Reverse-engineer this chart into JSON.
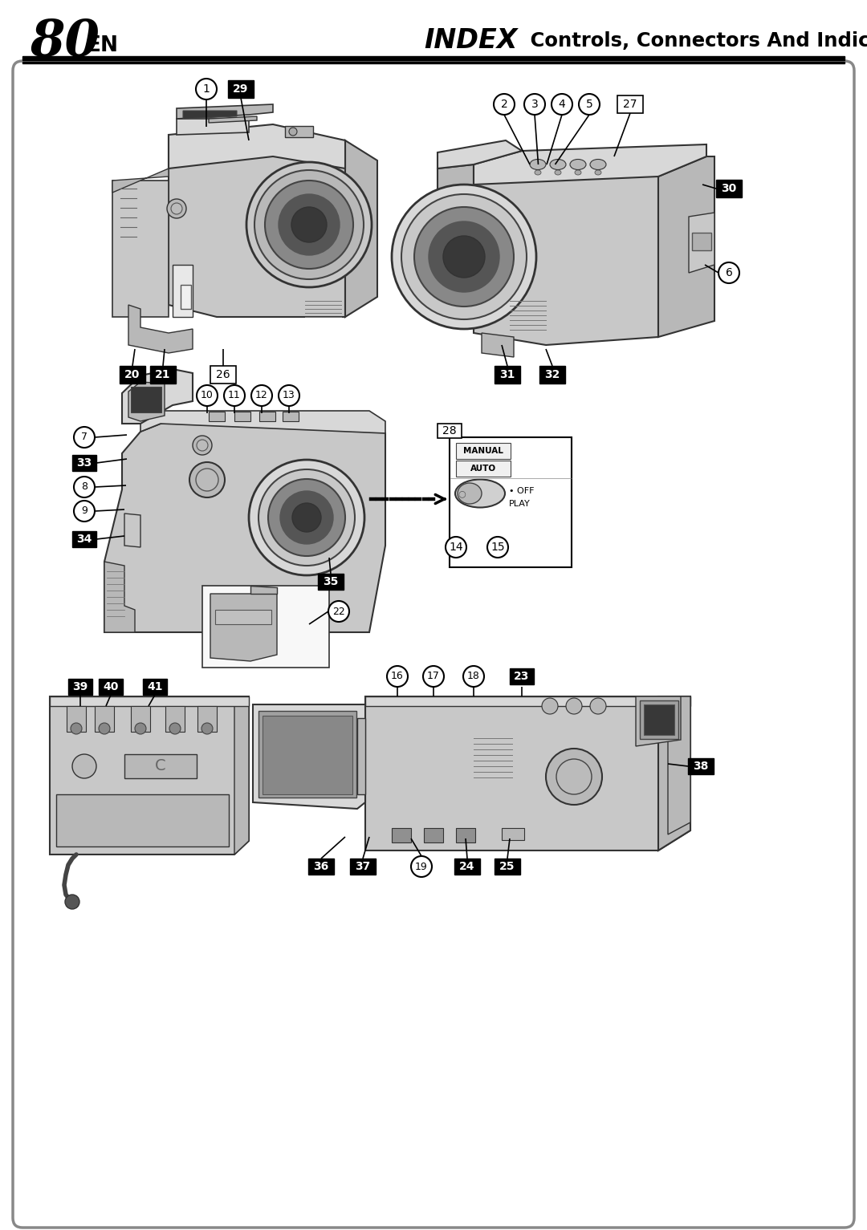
{
  "page_number": "80",
  "page_suffix": "EN",
  "title_italic": "INDEX",
  "title_rest": " Controls, Connectors And Indicators",
  "bg_color": "#ffffff",
  "border_color": "#999999",
  "fig_width": 10.8,
  "fig_height": 15.33,
  "dpi": 100,
  "cam_fill": "#d8d8d8",
  "cam_fill2": "#c8c8c8",
  "cam_fill3": "#b8b8b8",
  "cam_edge": "#333333",
  "dark_fill": "#383838",
  "lens_fill": "#888888"
}
